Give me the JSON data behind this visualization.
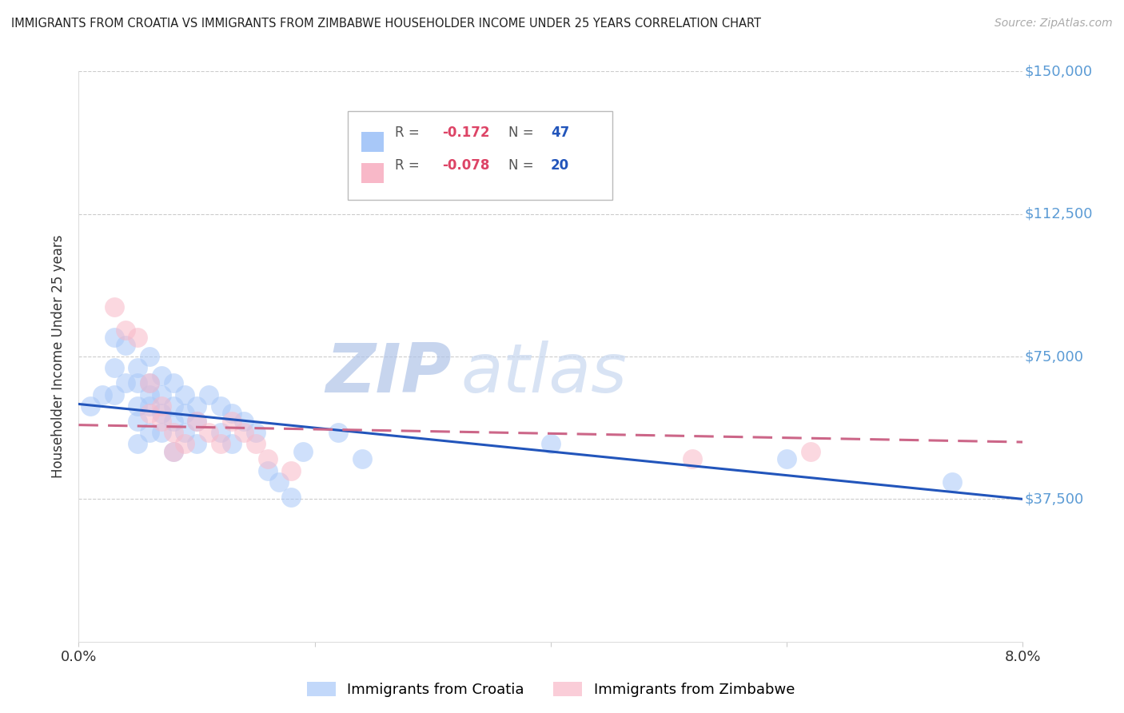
{
  "title": "IMMIGRANTS FROM CROATIA VS IMMIGRANTS FROM ZIMBABWE HOUSEHOLDER INCOME UNDER 25 YEARS CORRELATION CHART",
  "source": "Source: ZipAtlas.com",
  "ylabel": "Householder Income Under 25 years",
  "xlim": [
    0.0,
    0.08
  ],
  "ylim": [
    0,
    150000
  ],
  "croatia_color": "#a8c8f8",
  "zimbabwe_color": "#f8b8c8",
  "trend_croatia_color": "#2255bb",
  "trend_zimbabwe_color": "#cc6688",
  "watermark": "ZIPatlas",
  "watermark_color_zip": "#b8cce8",
  "watermark_color_atlas": "#c8d8f0",
  "croatia_x": [
    0.001,
    0.002,
    0.003,
    0.003,
    0.003,
    0.004,
    0.004,
    0.005,
    0.005,
    0.005,
    0.005,
    0.005,
    0.006,
    0.006,
    0.006,
    0.006,
    0.006,
    0.007,
    0.007,
    0.007,
    0.007,
    0.008,
    0.008,
    0.008,
    0.008,
    0.009,
    0.009,
    0.009,
    0.01,
    0.01,
    0.01,
    0.011,
    0.012,
    0.012,
    0.013,
    0.013,
    0.014,
    0.015,
    0.016,
    0.017,
    0.018,
    0.019,
    0.022,
    0.024,
    0.04,
    0.06,
    0.074
  ],
  "croatia_y": [
    62000,
    65000,
    80000,
    72000,
    65000,
    78000,
    68000,
    72000,
    68000,
    62000,
    58000,
    52000,
    75000,
    68000,
    65000,
    62000,
    55000,
    70000,
    65000,
    60000,
    55000,
    68000,
    62000,
    58000,
    50000,
    65000,
    60000,
    55000,
    62000,
    58000,
    52000,
    65000,
    62000,
    55000,
    60000,
    52000,
    58000,
    55000,
    45000,
    42000,
    38000,
    50000,
    55000,
    48000,
    52000,
    48000,
    42000
  ],
  "zimbabwe_x": [
    0.003,
    0.004,
    0.005,
    0.006,
    0.006,
    0.007,
    0.007,
    0.008,
    0.008,
    0.009,
    0.01,
    0.011,
    0.012,
    0.013,
    0.014,
    0.015,
    0.016,
    0.018,
    0.052,
    0.062
  ],
  "zimbabwe_y": [
    88000,
    82000,
    80000,
    68000,
    60000,
    62000,
    58000,
    55000,
    50000,
    52000,
    58000,
    55000,
    52000,
    58000,
    55000,
    52000,
    48000,
    45000,
    48000,
    50000
  ],
  "legend_R_croatia": "-0.172",
  "legend_N_croatia": "47",
  "legend_R_zimbabwe": "-0.078",
  "legend_N_zimbabwe": "20"
}
